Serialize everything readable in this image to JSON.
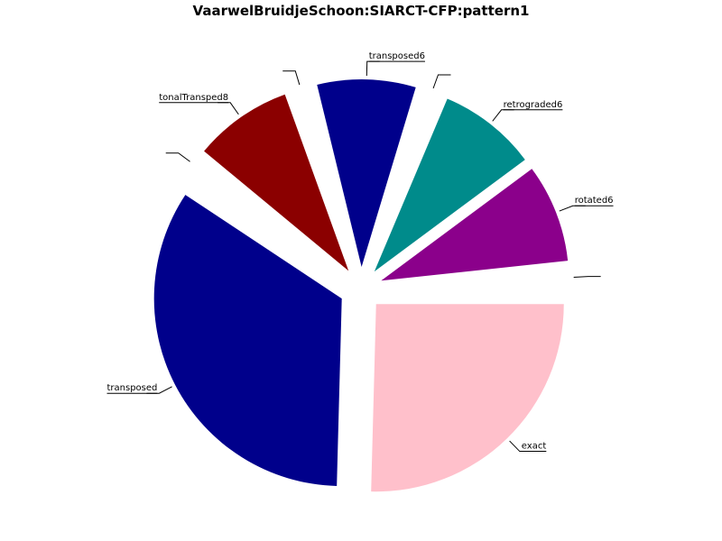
{
  "chart_data": {
    "type": "pie",
    "title": "VaarwelBruidjeSchoon:SIARCT-CFP:pattern1",
    "start_angle_deg": 0,
    "direction": "counterclockwise",
    "slices": [
      {
        "label": "",
        "value": 0.2,
        "color": "#ffffff"
      },
      {
        "label": "rotated6",
        "value": 1,
        "color": "#8b008b"
      },
      {
        "label": "retrograded6",
        "value": 1,
        "color": "#008b8b"
      },
      {
        "label": "",
        "value": 0.2,
        "color": "#ffffff"
      },
      {
        "label": "transposed6",
        "value": 1,
        "color": "#00008b"
      },
      {
        "label": "",
        "value": 0.2,
        "color": "#ffffff"
      },
      {
        "label": "tonalTransped8",
        "value": 1,
        "color": "#8b0000"
      },
      {
        "label": "",
        "value": 0.2,
        "color": "#ffffff"
      },
      {
        "label": "transposed",
        "value": 4,
        "color": "#00008b"
      },
      {
        "label": "exact",
        "value": 3,
        "color": "#ffc0cb"
      }
    ]
  }
}
